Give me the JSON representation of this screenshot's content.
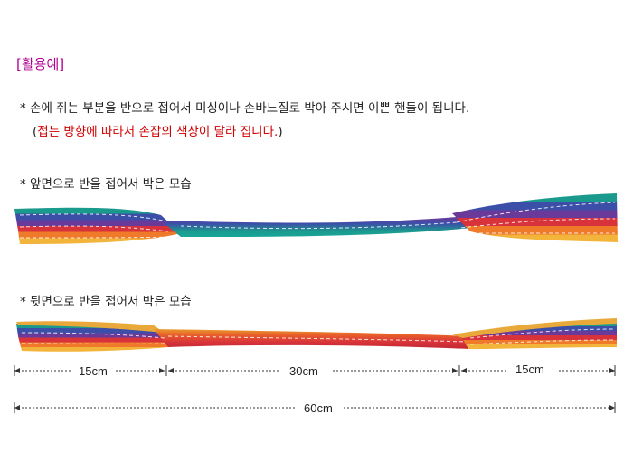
{
  "heading": "[활용예]",
  "instruction": "* 손에 쥐는 부분을 반으로 접어서 미싱이나 손바느질로 박아 주시면 이쁜 핸들이 됩니다.",
  "note": {
    "open": "(",
    "text": "접는 방향에 따라서 손잡의 색상이 달라 집니다.",
    "close": ")"
  },
  "sections": {
    "front": "* 앞면으로 반을 접어서 박은 모습",
    "back": "* 뒷면으로 반을 접어서 박은 모습"
  },
  "measurements": {
    "left": "15cm",
    "middle": "30cm",
    "right": "15cm",
    "total": "60cm"
  },
  "colors": {
    "heading": "#b0008f",
    "note_red": "#d10000",
    "stripes": [
      "#1a9a8c",
      "#3c4fa8",
      "#6a3a9a",
      "#d8323a",
      "#ef7a2a",
      "#f2b43a"
    ]
  }
}
